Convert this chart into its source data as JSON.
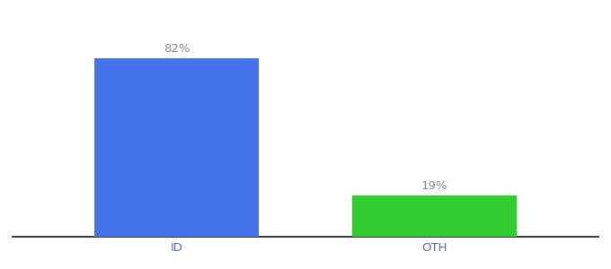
{
  "categories": [
    "ID",
    "OTH"
  ],
  "values": [
    82,
    19
  ],
  "bar_colors": [
    "#4472e8",
    "#33cc33"
  ],
  "labels": [
    "82%",
    "19%"
  ],
  "ylim": [
    0,
    100
  ],
  "background_color": "#ffffff",
  "label_fontsize": 9.5,
  "tick_fontsize": 9.5,
  "tick_color": "#5566cc",
  "label_color": "#888888",
  "bar_width": 0.28,
  "spine_color": "#111111",
  "x_positions": [
    0.28,
    0.72
  ]
}
